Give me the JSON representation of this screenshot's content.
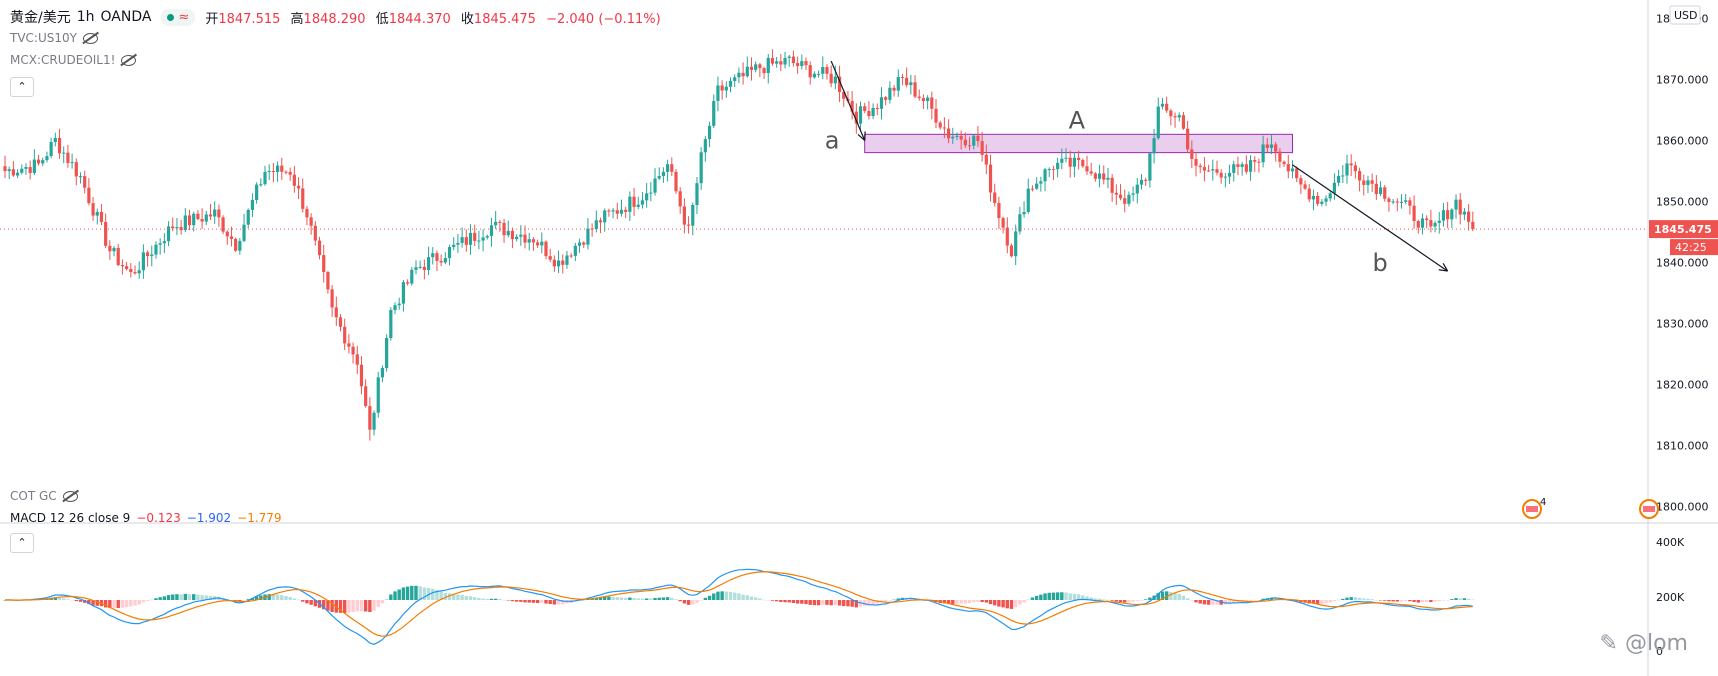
{
  "legend": {
    "symbol": "黄金/美元",
    "interval": "1h",
    "source": "OANDA",
    "open_label": "开",
    "open": "1847.515",
    "high_label": "高",
    "high": "1848.290",
    "low_label": "低",
    "low": "1844.370",
    "close_label": "收",
    "close": "1845.475",
    "change": "−2.040 (−0.11%)"
  },
  "studies": {
    "s1": "TVC:US10Y",
    "s2": "MCX:CRUDEOIL1!",
    "s3": "COT GC"
  },
  "macd_legend": {
    "label": "MACD 12 26 close 9",
    "hist": "−0.123",
    "macd": "−1.902",
    "signal": "−1.779"
  },
  "currency": "USD",
  "price_tag": "1845.475",
  "countdown": "42:25",
  "events_badge": "4",
  "watermark": "@lom",
  "colors": {
    "up": "#26a69a",
    "down": "#ef5350",
    "zone": "#e1bee7",
    "macd": "#2196f3",
    "signal": "#f57c00"
  },
  "chart_data": {
    "type": "candlestick",
    "title": "",
    "y_axis": {
      "ticks": [
        1800,
        1810,
        1820,
        1830,
        1840,
        1850,
        1860,
        1870,
        1880
      ],
      "tick_labels": [
        "1800.000",
        "1810.000",
        "1820.000",
        "1830.000",
        "1840.000",
        "1850.000",
        "1860.000",
        "1870.000",
        "1880.000"
      ],
      "ylim": [
        1797.5,
        1883
      ]
    },
    "anchors": [
      [
        0,
        1855
      ],
      [
        8,
        1856
      ],
      [
        12,
        1860
      ],
      [
        18,
        1854
      ],
      [
        25,
        1842
      ],
      [
        30,
        1838
      ],
      [
        40,
        1846
      ],
      [
        50,
        1848
      ],
      [
        55,
        1843
      ],
      [
        62,
        1855
      ],
      [
        68,
        1855
      ],
      [
        72,
        1848
      ],
      [
        78,
        1832
      ],
      [
        84,
        1824
      ],
      [
        87,
        1812
      ],
      [
        92,
        1832
      ],
      [
        98,
        1839
      ],
      [
        106,
        1842
      ],
      [
        116,
        1846
      ],
      [
        126,
        1844
      ],
      [
        132,
        1840
      ],
      [
        142,
        1847
      ],
      [
        152,
        1851
      ],
      [
        158,
        1856
      ],
      [
        163,
        1845
      ],
      [
        166,
        1857
      ],
      [
        170,
        1868
      ],
      [
        180,
        1872
      ],
      [
        187,
        1873
      ],
      [
        190,
        1872
      ],
      [
        198,
        1870
      ],
      [
        203,
        1864
      ],
      [
        208,
        1866
      ],
      [
        214,
        1870
      ],
      [
        220,
        1866
      ],
      [
        225,
        1861
      ],
      [
        232,
        1860
      ],
      [
        236,
        1850
      ],
      [
        240,
        1842
      ],
      [
        244,
        1852
      ],
      [
        250,
        1856
      ],
      [
        258,
        1856
      ],
      [
        264,
        1852
      ],
      [
        268,
        1850
      ],
      [
        272,
        1854
      ],
      [
        275,
        1865
      ],
      [
        280,
        1864
      ],
      [
        284,
        1855
      ],
      [
        290,
        1855
      ],
      [
        296,
        1855
      ],
      [
        302,
        1860
      ],
      [
        308,
        1853
      ],
      [
        314,
        1850
      ],
      [
        320,
        1856
      ],
      [
        326,
        1853
      ],
      [
        334,
        1849
      ],
      [
        340,
        1845
      ],
      [
        346,
        1850
      ],
      [
        350,
        1846
      ]
    ],
    "macd_levels": {
      "ticks": [
        0,
        200,
        400
      ],
      "tick_labels": [
        "0",
        "200K",
        "400K"
      ]
    },
    "annotations": [
      {
        "text": "a",
        "type": "arrow",
        "x1": 197,
        "y1": 1873,
        "x2": 205,
        "y2": 1860
      },
      {
        "text": "A",
        "type": "zone",
        "x1": 205,
        "x2": 307,
        "y1": 1858,
        "y2": 1861
      },
      {
        "text": "b",
        "type": "arrow",
        "x1": 307,
        "y1": 1856,
        "x2": 344,
        "y2": 1838.6
      }
    ]
  }
}
